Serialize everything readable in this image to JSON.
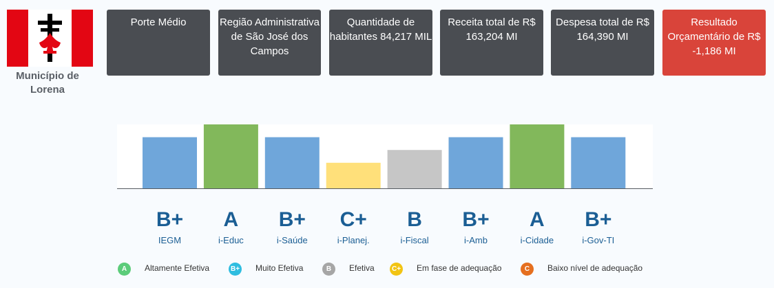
{
  "municipio": {
    "name": "Município de Lorena"
  },
  "colors": {
    "card_bg": "#4a4d52",
    "card_negative_bg": "#d9443a",
    "flag_red": "#e30613",
    "grade_blue": "#1b5e94",
    "bar_blue": "#6fa6da",
    "bar_green": "#82b85b",
    "bar_yellow": "#ffe07a",
    "bar_gray": "#c6c6c6"
  },
  "cards": [
    {
      "text": "Porte Médio"
    },
    {
      "text": "Região Administrativa de São José dos Campos"
    },
    {
      "text": "Quantidade de habitantes 84,217 MIL"
    },
    {
      "text": "Receita total de R$ 163,204 MI"
    },
    {
      "text": "Despesa total de R$ 164,390 MI"
    },
    {
      "text": "Resultado Orçamentário de R$ -1,186 MI",
      "status": "negative"
    }
  ],
  "chart_data": {
    "type": "bar",
    "categories": [
      "IEGM",
      "i-Educ",
      "i-Saúde",
      "i-Planej.",
      "i-Fiscal",
      "i-Amb",
      "i-Cidade",
      "i-Gov-TI"
    ],
    "grades": [
      "B+",
      "A",
      "B+",
      "C+",
      "B",
      "B+",
      "A",
      "B+"
    ],
    "values": [
      4,
      5,
      4,
      2,
      3,
      4,
      5,
      4
    ],
    "bar_colors": [
      "#6fa6da",
      "#82b85b",
      "#6fa6da",
      "#ffe07a",
      "#c6c6c6",
      "#6fa6da",
      "#82b85b",
      "#6fa6da"
    ],
    "ylim": [
      0,
      5
    ],
    "grid": false,
    "title": "",
    "xlabel": "",
    "ylabel": ""
  },
  "legend": [
    {
      "badge": "A",
      "label": "Altamente Efetiva",
      "color": "#5ccc7a"
    },
    {
      "badge": "B+",
      "label": "Muito Efetiva",
      "color": "#2fbde0"
    },
    {
      "badge": "B",
      "label": "Efetiva",
      "color": "#a6a6a6"
    },
    {
      "badge": "C+",
      "label": "Em fase de adequação",
      "color": "#f2c413"
    },
    {
      "badge": "C",
      "label": "Baixo nível de adequação",
      "color": "#e56f1f"
    }
  ]
}
